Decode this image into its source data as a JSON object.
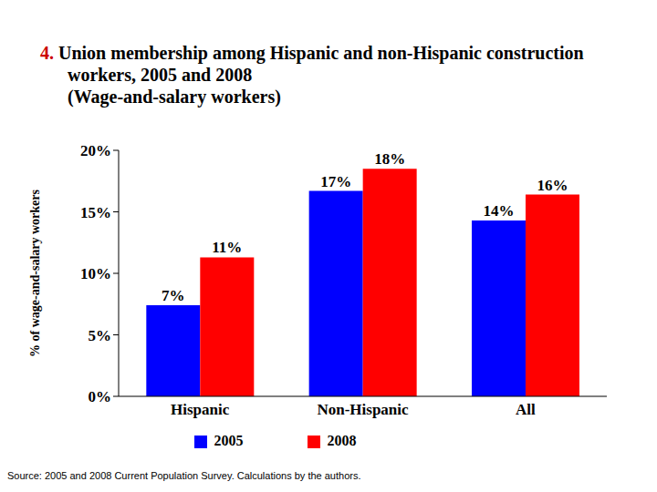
{
  "chart_data": {
    "type": "bar",
    "title": "4. Union membership among Hispanic and non-Hispanic construction workers, 2005 and 2008",
    "subtitle": "(Wage-and-salary workers)",
    "y_label": "% of wage-and-salary workers",
    "source": "Source: 2005 and 2008 Current Population Survey. Calculations by the authors.",
    "categories": [
      "Hispanic",
      "Non-Hispanic",
      "All"
    ],
    "series": [
      {
        "name": "2005",
        "color": "#0000ff",
        "values": [
          7.4,
          16.7,
          14.3
        ],
        "value_labels": [
          "7%",
          "17%",
          "14%"
        ]
      },
      {
        "name": "2008",
        "color": "#ff0000",
        "values": [
          11.3,
          18.5,
          16.4
        ],
        "value_labels": [
          "11%",
          "18%",
          "16%"
        ]
      }
    ],
    "ylim": [
      0,
      20
    ],
    "yticks": [
      {
        "value": 0,
        "label": "0%"
      },
      {
        "value": 5,
        "label": "5%"
      },
      {
        "value": 10,
        "label": "10%"
      },
      {
        "value": 15,
        "label": "15%"
      },
      {
        "value": 20,
        "label": "20%"
      }
    ],
    "grid": false,
    "legend": "bottom",
    "data_labels": true
  }
}
